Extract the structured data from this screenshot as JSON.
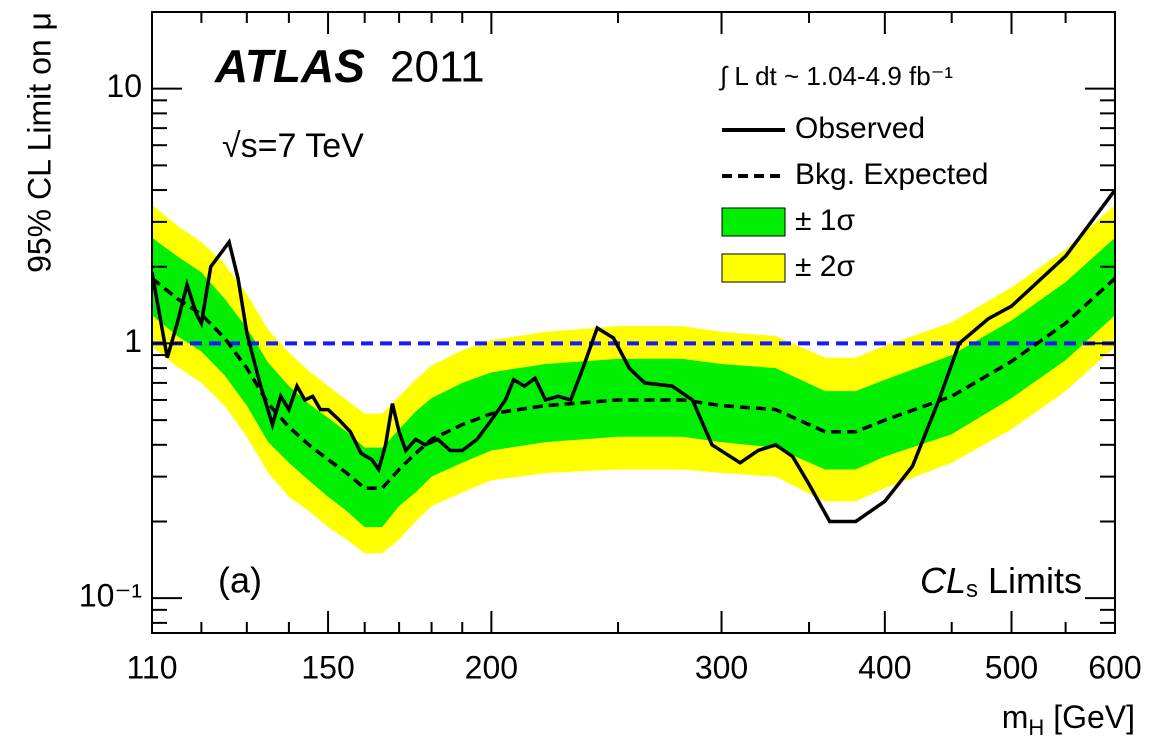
{
  "chart_data": {
    "type": "limit-band",
    "experiment": "ATLAS",
    "year": "2011",
    "energy": "√s=7 TeV",
    "luminosity": "∫ L dt ~ 1.04-4.9 fb⁻¹",
    "panel": "(a)",
    "method": {
      "main": "CL",
      "sub": "s",
      "rest": " Limits"
    },
    "x_label": {
      "main": "m",
      "sub": "H",
      "rest": " [GeV]"
    },
    "y_label": "95% CL Limit on μ",
    "xscale": "log",
    "yscale": "log",
    "xlim": [
      110,
      600
    ],
    "ylim": [
      0.073,
      20
    ],
    "xticks": [
      110,
      150,
      200,
      300,
      400,
      500,
      600
    ],
    "yticks": [
      {
        "value": 0.1,
        "label": "10⁻¹"
      },
      1,
      10
    ],
    "x_minor_ticks": [
      120,
      130,
      140,
      160,
      170,
      180,
      190,
      250,
      350,
      450,
      550
    ],
    "y_minor_ticks": [
      0.08,
      0.09,
      0.2,
      0.3,
      0.4,
      0.5,
      0.6,
      0.7,
      0.8,
      0.9,
      2,
      3,
      4,
      5,
      6,
      7,
      8,
      9
    ],
    "reference_line": {
      "value": 1,
      "color": "#1a1aff"
    },
    "bands": [
      {
        "name": "± 2σ",
        "color": "#ffff00",
        "x": [
          110,
          115,
          120,
          125,
          130,
          135,
          140,
          145,
          150,
          155,
          160,
          165,
          170,
          175,
          180,
          190,
          200,
          220,
          250,
          280,
          300,
          330,
          360,
          380,
          400,
          450,
          500,
          550,
          600
        ],
        "upper": [
          3.5,
          2.9,
          2.5,
          2.05,
          1.56,
          1.13,
          0.92,
          0.78,
          0.68,
          0.6,
          0.53,
          0.53,
          0.62,
          0.72,
          0.82,
          0.94,
          1.03,
          1.11,
          1.17,
          1.17,
          1.11,
          1.07,
          0.88,
          0.88,
          0.98,
          1.21,
          1.66,
          2.34,
          3.5
        ],
        "lower": [
          0.97,
          0.81,
          0.7,
          0.57,
          0.43,
          0.31,
          0.25,
          0.22,
          0.19,
          0.17,
          0.15,
          0.15,
          0.17,
          0.2,
          0.23,
          0.26,
          0.29,
          0.31,
          0.32,
          0.32,
          0.31,
          0.3,
          0.24,
          0.24,
          0.27,
          0.34,
          0.46,
          0.65,
          0.97
        ]
      },
      {
        "name": "± 1σ",
        "color": "#00ee00",
        "x": [
          110,
          115,
          120,
          125,
          130,
          135,
          140,
          145,
          150,
          155,
          160,
          165,
          170,
          175,
          180,
          190,
          200,
          220,
          250,
          280,
          300,
          330,
          360,
          380,
          400,
          450,
          500,
          550,
          600
        ],
        "upper": [
          2.6,
          2.2,
          1.9,
          1.5,
          1.15,
          0.84,
          0.68,
          0.58,
          0.51,
          0.45,
          0.39,
          0.39,
          0.46,
          0.54,
          0.61,
          0.7,
          0.77,
          0.83,
          0.87,
          0.87,
          0.83,
          0.8,
          0.65,
          0.65,
          0.72,
          0.9,
          1.23,
          1.74,
          2.6
        ],
        "lower": [
          1.29,
          1.07,
          0.93,
          0.75,
          0.57,
          0.41,
          0.34,
          0.29,
          0.25,
          0.22,
          0.19,
          0.19,
          0.23,
          0.26,
          0.3,
          0.34,
          0.38,
          0.41,
          0.43,
          0.43,
          0.41,
          0.39,
          0.32,
          0.32,
          0.36,
          0.44,
          0.61,
          0.86,
          1.29
        ]
      }
    ],
    "series": [
      {
        "name": "Bkg. Expected",
        "color": "#000000",
        "dash": "dashed",
        "x": [
          110,
          115,
          120,
          125,
          130,
          135,
          140,
          145,
          150,
          155,
          160,
          165,
          170,
          175,
          180,
          190,
          200,
          220,
          250,
          280,
          300,
          330,
          360,
          380,
          400,
          450,
          500,
          550,
          600
        ],
        "values": [
          1.8,
          1.5,
          1.3,
          1.05,
          0.8,
          0.58,
          0.47,
          0.4,
          0.35,
          0.31,
          0.27,
          0.27,
          0.32,
          0.37,
          0.42,
          0.48,
          0.53,
          0.57,
          0.6,
          0.6,
          0.57,
          0.55,
          0.45,
          0.45,
          0.5,
          0.62,
          0.85,
          1.2,
          1.8
        ]
      },
      {
        "name": "Observed",
        "color": "#000000",
        "dash": "solid",
        "x": [
          110,
          113,
          115,
          117,
          119,
          120,
          122,
          126,
          128,
          130,
          133,
          136,
          138,
          140,
          142,
          144,
          146,
          148,
          150,
          153,
          156,
          159,
          162,
          164,
          166,
          168,
          170,
          172,
          175,
          178,
          182,
          186,
          190,
          195,
          200,
          205,
          208,
          212,
          216,
          220,
          225,
          230,
          235,
          241,
          248,
          255,
          262,
          275,
          285,
          295,
          310,
          320,
          330,
          340,
          350,
          363,
          380,
          400,
          420,
          440,
          456,
          480,
          500,
          550,
          600
        ],
        "values": [
          1.9,
          0.88,
          1.2,
          1.7,
          1.3,
          1.2,
          2.0,
          2.5,
          1.8,
          1.1,
          0.7,
          0.48,
          0.62,
          0.55,
          0.68,
          0.6,
          0.62,
          0.55,
          0.55,
          0.5,
          0.45,
          0.37,
          0.35,
          0.32,
          0.4,
          0.58,
          0.45,
          0.38,
          0.42,
          0.4,
          0.42,
          0.38,
          0.38,
          0.42,
          0.5,
          0.6,
          0.72,
          0.68,
          0.73,
          0.6,
          0.62,
          0.6,
          0.8,
          1.15,
          1.05,
          0.8,
          0.7,
          0.68,
          0.6,
          0.4,
          0.34,
          0.38,
          0.4,
          0.36,
          0.28,
          0.2,
          0.2,
          0.24,
          0.33,
          0.6,
          1.0,
          1.25,
          1.4,
          2.2,
          4.0
        ]
      }
    ],
    "legend_order": [
      "Observed",
      "Bkg. Expected",
      "± 1σ",
      "± 2σ"
    ]
  }
}
